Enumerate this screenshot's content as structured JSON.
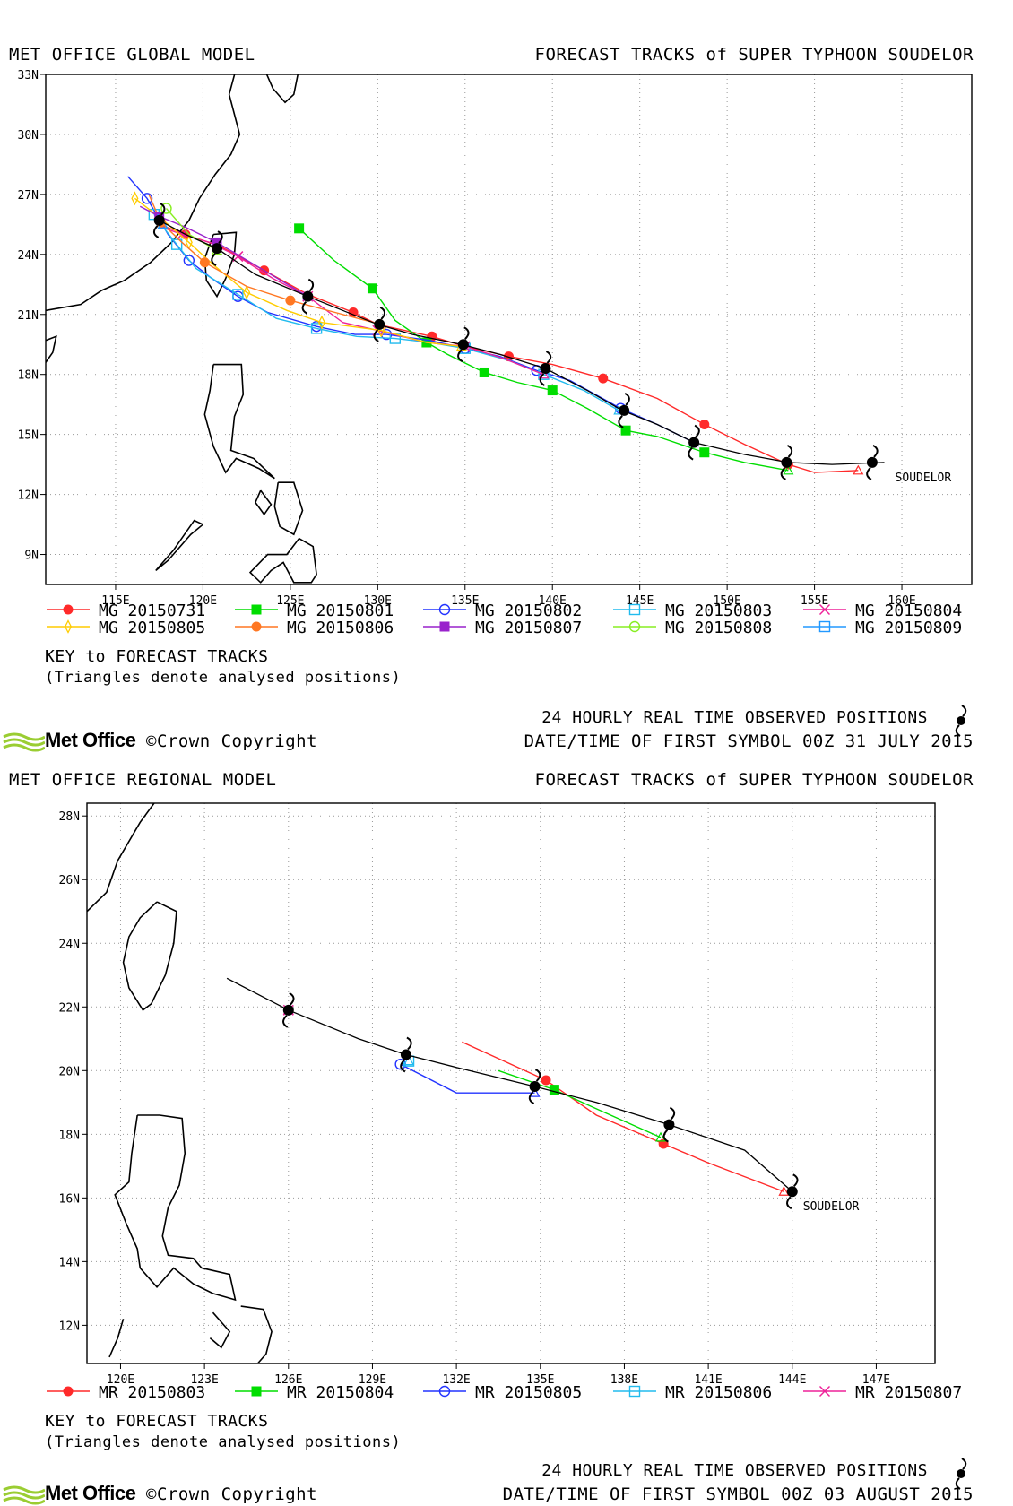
{
  "panels": [
    {
      "model_title": "MET OFFICE GLOBAL MODEL",
      "forecast_title": "FORECAST TRACKS of SUPER TYPHOON SOUDELOR",
      "key_title": "KEY to FORECAST TRACKS",
      "triangle_note": "(Triangles denote analysed positions)",
      "observed_note": "24 HOURLY REAL TIME OBSERVED POSITIONS",
      "first_symbol": "DATE/TIME OF FIRST SYMBOL 00Z 31 JULY 2015",
      "logo_text": "Met Office",
      "copyright": "©Crown Copyright"
    },
    {
      "model_title": "MET OFFICE REGIONAL MODEL",
      "forecast_title": "FORECAST TRACKS of SUPER TYPHOON SOUDELOR",
      "key_title": "KEY to FORECAST TRACKS",
      "triangle_note": "(Triangles denote analysed positions)",
      "observed_note": "24 HOURLY REAL TIME OBSERVED POSITIONS",
      "first_symbol": "DATE/TIME OF FIRST SYMBOL 00Z 03 AUGUST 2015",
      "logo_text": "Met Office",
      "copyright": "©Crown Copyright"
    }
  ],
  "chart_data": [
    {
      "type": "line",
      "storm_label": "SOUDELOR",
      "xlim": [
        111,
        164
      ],
      "ylim": [
        7.5,
        33
      ],
      "xticks": [
        115,
        120,
        125,
        130,
        135,
        140,
        145,
        150,
        155,
        160
      ],
      "xtick_labels": [
        "115E",
        "120E",
        "125E",
        "130E",
        "135E",
        "140E",
        "145E",
        "150E",
        "155E",
        "160E"
      ],
      "yticks": [
        9,
        12,
        15,
        18,
        21,
        24,
        27,
        30,
        33
      ],
      "ytick_labels": [
        "9N",
        "12N",
        "15N",
        "18N",
        "21N",
        "24N",
        "27N",
        "30N",
        "33N"
      ],
      "grid": true,
      "observed_track": {
        "name": "SOUDELOR",
        "points": [
          [
            159,
            13.6
          ],
          [
            156,
            13.5
          ],
          [
            153.5,
            13.6
          ],
          [
            151,
            14
          ],
          [
            148.1,
            14.6
          ],
          [
            146,
            15.5
          ],
          [
            144,
            16.2
          ],
          [
            142,
            17.2
          ],
          [
            139.6,
            18.3
          ],
          [
            137,
            19
          ],
          [
            134.8,
            19.5
          ],
          [
            132,
            20
          ],
          [
            130,
            20.5
          ],
          [
            128,
            21.2
          ],
          [
            126,
            21.9
          ],
          [
            123,
            23
          ],
          [
            120.8,
            24.3
          ],
          [
            119,
            25
          ],
          [
            117.5,
            25.7
          ],
          [
            117.2,
            25.8
          ]
        ],
        "symbols": [
          [
            158.3,
            13.6
          ],
          [
            153.4,
            13.6
          ],
          [
            148.1,
            14.6
          ],
          [
            144.1,
            16.2
          ],
          [
            139.6,
            18.3
          ],
          [
            134.9,
            19.5
          ],
          [
            130.1,
            20.5
          ],
          [
            126,
            21.9
          ],
          [
            120.8,
            24.3
          ],
          [
            117.5,
            25.7
          ]
        ]
      },
      "series": [
        {
          "name": "MG 20150731",
          "color": "#ff2a2a",
          "marker": "filled-circle",
          "points": [
            [
              157.5,
              13.2
            ],
            [
              155,
              13.1
            ],
            [
              153.5,
              13.5
            ],
            [
              151,
              14.5
            ],
            [
              148.7,
              15.5
            ],
            [
              146,
              16.8
            ],
            [
              142.9,
              17.8
            ],
            [
              140,
              18.5
            ],
            [
              137.5,
              18.9
            ],
            [
              135,
              19.4
            ],
            [
              133.1,
              19.9
            ],
            [
              130,
              20.5
            ],
            [
              128.6,
              21.1
            ],
            [
              126,
              22
            ],
            [
              123.5,
              23.2
            ],
            [
              121,
              24.4
            ],
            [
              119,
              25
            ],
            [
              117.5,
              25.5
            ]
          ]
        },
        {
          "name": "MG 20150801",
          "color": "#00dd00",
          "marker": "filled-square",
          "points": [
            [
              153.5,
              13.2
            ],
            [
              151,
              13.6
            ],
            [
              148.7,
              14.1
            ],
            [
              146,
              14.9
            ],
            [
              144.2,
              15.2
            ],
            [
              142,
              16.3
            ],
            [
              140,
              17.2
            ],
            [
              138,
              17.6
            ],
            [
              136.1,
              18.1
            ],
            [
              134,
              19
            ],
            [
              132.8,
              19.6
            ],
            [
              131,
              20.7
            ],
            [
              129.7,
              22.3
            ],
            [
              127.5,
              23.7
            ],
            [
              125.5,
              25.3
            ]
          ]
        },
        {
          "name": "MG 20150802",
          "color": "#2233ff",
          "marker": "open-circle",
          "points": [
            [
              148.1,
              14.6
            ],
            [
              146,
              15.5
            ],
            [
              143.9,
              16.3
            ],
            [
              141,
              17.7
            ],
            [
              139.1,
              18.2
            ],
            [
              137,
              18.9
            ],
            [
              135,
              19.3
            ],
            [
              133,
              19.7
            ],
            [
              130.5,
              20
            ],
            [
              128.7,
              20
            ],
            [
              126.5,
              20.4
            ],
            [
              123.7,
              21.1
            ],
            [
              122,
              21.9
            ],
            [
              120.5,
              22.8
            ],
            [
              119.2,
              23.7
            ],
            [
              118,
              25
            ],
            [
              116.8,
              26.8
            ],
            [
              115.7,
              27.9
            ]
          ]
        },
        {
          "name": "MG 20150803",
          "color": "#22bbee",
          "marker": "open-square",
          "points": [
            [
              143.8,
              16.2
            ],
            [
              141.8,
              17.2
            ],
            [
              139.5,
              18
            ],
            [
              137.5,
              18.7
            ],
            [
              135,
              19.3
            ],
            [
              133,
              19.6
            ],
            [
              131,
              19.8
            ],
            [
              128.8,
              19.9
            ],
            [
              126.5,
              20.3
            ],
            [
              124.2,
              20.8
            ],
            [
              122,
              22
            ],
            [
              119.6,
              23.3
            ],
            [
              118.5,
              24.5
            ],
            [
              117.6,
              25.5
            ],
            [
              117.2,
              26
            ]
          ]
        },
        {
          "name": "MG 20150804",
          "color": "#ee2299",
          "marker": "x",
          "points": [
            [
              139.5,
              18
            ],
            [
              137.2,
              18.8
            ],
            [
              135,
              19.4
            ],
            [
              132.8,
              19.6
            ],
            [
              130,
              20.2
            ],
            [
              128,
              20.6
            ],
            [
              126,
              21.9
            ],
            [
              124,
              22.8
            ],
            [
              122,
              23.9
            ],
            [
              120.4,
              24.6
            ],
            [
              118.8,
              25
            ],
            [
              117.5,
              25.4
            ]
          ]
        },
        {
          "name": "MG 20150805",
          "color": "#ffcc00",
          "marker": "thin-diamond",
          "points": [
            [
              134.8,
              19.4
            ],
            [
              132.8,
              19.6
            ],
            [
              130.2,
              20.2
            ],
            [
              128.5,
              20.4
            ],
            [
              126.8,
              20.6
            ],
            [
              124.8,
              21.2
            ],
            [
              122.5,
              22.1
            ],
            [
              120.7,
              23.4
            ],
            [
              119.2,
              24.6
            ],
            [
              117.6,
              25.8
            ],
            [
              116.1,
              26.8
            ]
          ]
        },
        {
          "name": "MG 20150806",
          "color": "#ff7722",
          "marker": "filled-circle",
          "points": [
            [
              130.2,
              20.5
            ],
            [
              128,
              21
            ],
            [
              125,
              21.7
            ],
            [
              122.5,
              22.4
            ],
            [
              120.1,
              23.6
            ],
            [
              118.8,
              24.6
            ],
            [
              117.6,
              25.6
            ],
            [
              116.9,
              27
            ]
          ]
        },
        {
          "name": "MG 20150807",
          "color": "#9922cc",
          "marker": "filled-square",
          "points": [
            [
              126,
              21.9
            ],
            [
              123.5,
              23.2
            ],
            [
              120.8,
              24.6
            ],
            [
              118.9,
              25.4
            ],
            [
              117.5,
              25.9
            ],
            [
              116.4,
              26.4
            ]
          ]
        },
        {
          "name": "MG 20150808",
          "color": "#88ee22",
          "marker": "open-circle",
          "points": [
            [
              120.8,
              24.2
            ],
            [
              119.2,
              25
            ],
            [
              117.9,
              26.3
            ]
          ]
        },
        {
          "name": "MG 20150809",
          "color": "#2299ff",
          "marker": "open-square",
          "points": [
            [
              117.7,
              25.5
            ],
            [
              117.4,
              26
            ]
          ]
        }
      ]
    },
    {
      "type": "line",
      "storm_label": "SOUDELOR",
      "xlim": [
        118.8,
        149.1
      ],
      "ylim": [
        10.8,
        28.4
      ],
      "xticks": [
        120,
        123,
        126,
        129,
        132,
        135,
        138,
        141,
        144,
        147
      ],
      "xtick_labels": [
        "120E",
        "123E",
        "126E",
        "129E",
        "132E",
        "135E",
        "138E",
        "141E",
        "144E",
        "147E"
      ],
      "yticks": [
        12,
        14,
        16,
        18,
        20,
        22,
        24,
        26,
        28
      ],
      "ytick_labels": [
        "12N",
        "14N",
        "16N",
        "18N",
        "20N",
        "22N",
        "24N",
        "26N",
        "28N"
      ],
      "grid": true,
      "observed_track": {
        "name": "SOUDELOR",
        "points": [
          [
            144,
            16.2
          ],
          [
            142.3,
            17.5
          ],
          [
            139.6,
            18.3
          ],
          [
            137,
            19
          ],
          [
            134.8,
            19.5
          ],
          [
            132,
            20.1
          ],
          [
            130.2,
            20.5
          ],
          [
            128.5,
            21
          ],
          [
            126,
            21.9
          ],
          [
            123.8,
            22.9
          ]
        ],
        "symbols": [
          [
            144,
            16.2
          ],
          [
            139.6,
            18.3
          ],
          [
            134.8,
            19.5
          ],
          [
            130.2,
            20.5
          ],
          [
            126,
            21.9
          ]
        ]
      },
      "series": [
        {
          "name": "MR 20150803",
          "color": "#ff2a2a",
          "marker": "filled-circle",
          "points": [
            [
              143.7,
              16.2
            ],
            [
              141,
              17.1
            ],
            [
              139.4,
              17.7
            ],
            [
              137,
              18.6
            ],
            [
              135.2,
              19.7
            ],
            [
              132.2,
              20.9
            ]
          ]
        },
        {
          "name": "MR 20150804",
          "color": "#00dd00",
          "marker": "filled-square",
          "points": [
            [
              139.3,
              17.9
            ],
            [
              137,
              18.8
            ],
            [
              135.5,
              19.4
            ],
            [
              133.5,
              20
            ]
          ]
        },
        {
          "name": "MR 20150805",
          "color": "#2233ff",
          "marker": "open-circle",
          "points": [
            [
              134.8,
              19.3
            ],
            [
              132,
              19.3
            ],
            [
              130,
              20.2
            ]
          ]
        },
        {
          "name": "MR 20150806",
          "color": "#22bbee",
          "marker": "open-square",
          "points": [
            [
              130.3,
              20.3
            ]
          ]
        },
        {
          "name": "MR 20150807",
          "color": "#ee2299",
          "marker": "x",
          "points": [
            [
              126,
              21.9
            ]
          ]
        }
      ]
    }
  ],
  "legend": {
    "colors": {
      "observed": "#000000",
      "land": "#000000",
      "grid": "#999999"
    }
  }
}
